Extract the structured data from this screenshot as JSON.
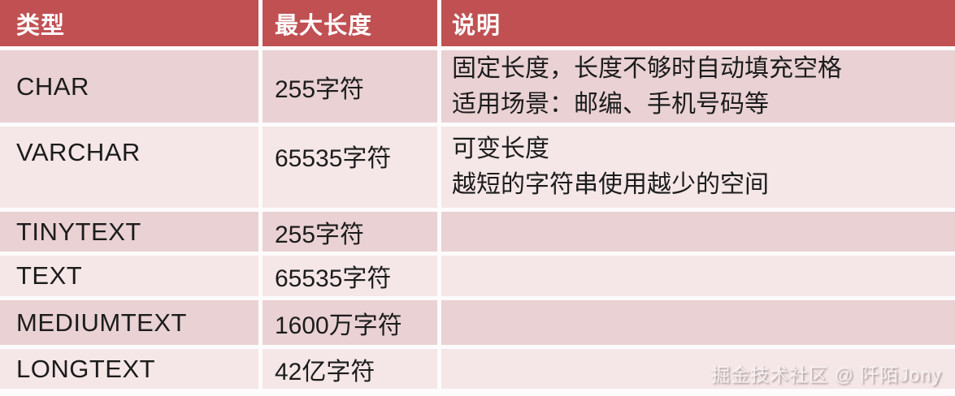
{
  "table": {
    "columns": [
      {
        "label": "类型"
      },
      {
        "label": "最大长度"
      },
      {
        "label": "说明"
      }
    ],
    "rows": [
      {
        "type": "CHAR",
        "max_length": "255字符",
        "description_lines": [
          "固定长度，长度不够时自动填充空格",
          "适用场景：邮编、手机号码等"
        ]
      },
      {
        "type": "VARCHAR",
        "max_length": "65535字符",
        "description_lines": [
          "可变长度",
          "越短的字符串使用越少的空间"
        ]
      },
      {
        "type": "TINYTEXT",
        "max_length": "255字符",
        "description_lines": []
      },
      {
        "type": "TEXT",
        "max_length": "65535字符",
        "description_lines": []
      },
      {
        "type": "MEDIUMTEXT",
        "max_length": "1600万字符",
        "description_lines": []
      },
      {
        "type": "LONGTEXT",
        "max_length": "42亿字符",
        "description_lines": []
      }
    ]
  },
  "watermark": "掘金技术社区 @ 阡陌Jony",
  "colors": {
    "header_bg": "#c05052",
    "row_dark": "#e9d1d4",
    "row_light": "#f5e6e7",
    "gap": "#fdfbfb",
    "text": "#1c1c1c",
    "header_text": "#ffffff"
  }
}
